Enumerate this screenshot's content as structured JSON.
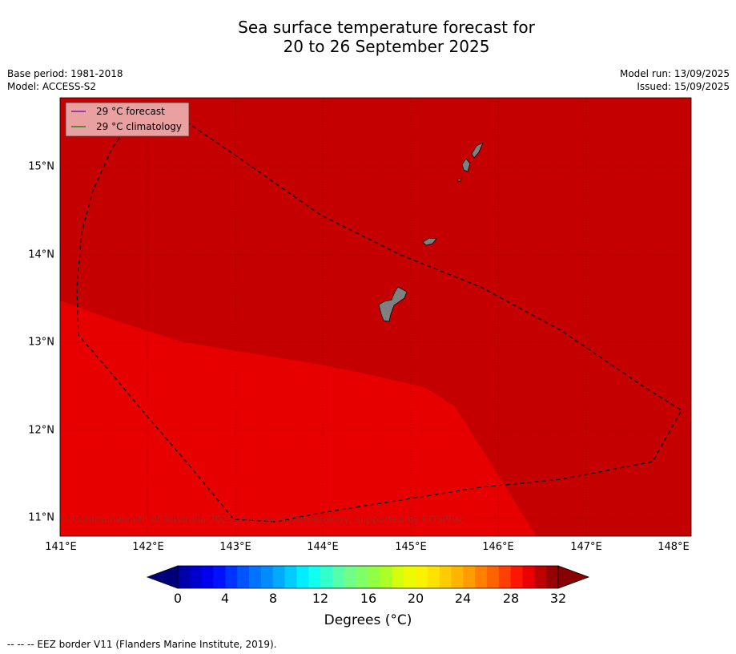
{
  "title_line1": "Sea surface temperature forecast for",
  "title_line2": "20 to 26 September 2025",
  "meta_left": [
    "Base period: 1981-2018",
    "Model: ACCESS-S2"
  ],
  "meta_right": [
    "Model run: 13/09/2025",
    "Issued: 15/09/2025"
  ],
  "legend": [
    {
      "label": "29 °C  forecast",
      "color": "#7b1fa2"
    },
    {
      "label": "29 °C  climatology",
      "color": "#2e7d1a"
    }
  ],
  "axes": {
    "lon_ticks": [
      "141°E",
      "142°E",
      "143°E",
      "144°E",
      "145°E",
      "146°E",
      "147°E",
      "148°E"
    ],
    "lat_ticks": [
      "15°N",
      "14°N",
      "13°N",
      "12°N",
      "11°N"
    ]
  },
  "fill_colors": {
    "sst_29_30": "#e60000",
    "sst_30_31": "#c40000",
    "land": "#808080"
  },
  "copyright": "© Commonwealth of Australia 2025, Bureau of Meteorology, supported by COSPPac",
  "colorbar": {
    "ticks": [
      "0",
      "4",
      "8",
      "12",
      "16",
      "20",
      "24",
      "28",
      "32"
    ],
    "title": "Degrees (°C)"
  },
  "footer": "--  --  -- EEZ border V11 (Flanders Marine Institute, 2019)."
}
